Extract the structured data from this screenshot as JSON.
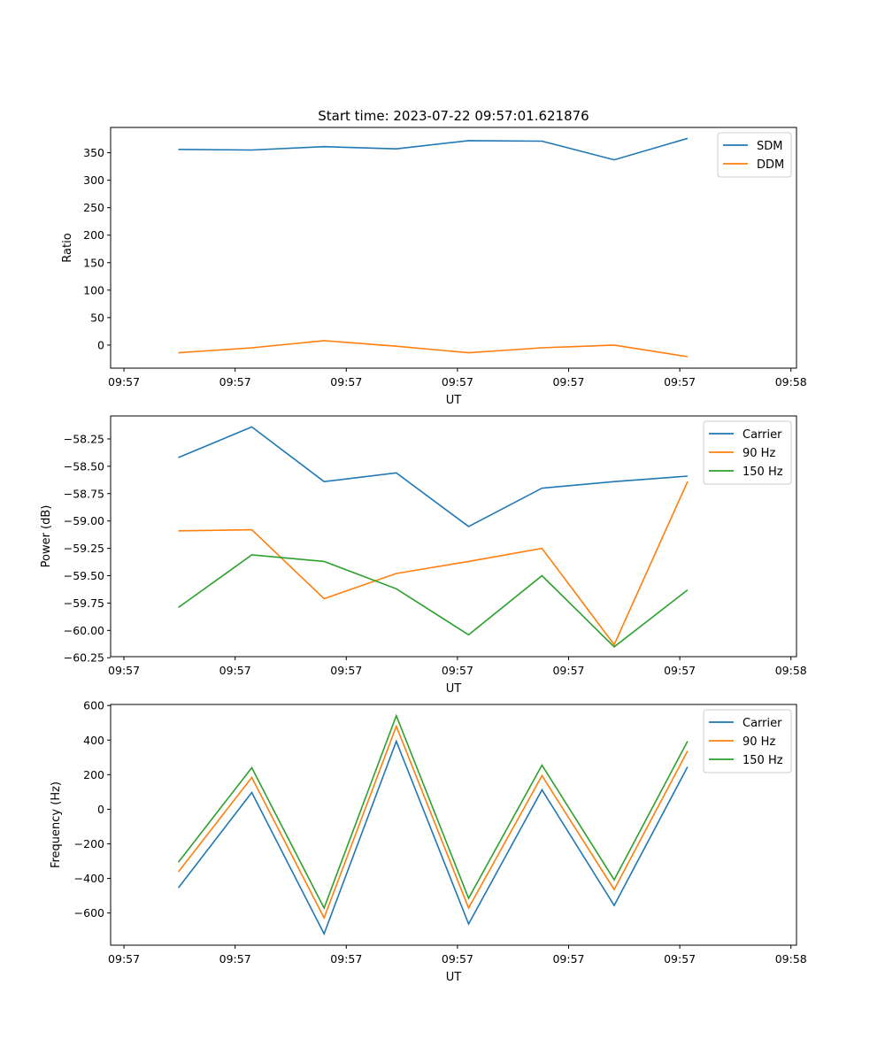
{
  "chart_data": [
    {
      "type": "line",
      "title": "Start time: 2023-07-22 09:57:01.621876",
      "xlabel": "UT",
      "ylabel": "Ratio",
      "x_seconds": [
        4.9,
        11.5,
        18.0,
        24.5,
        31.0,
        37.6,
        44.1,
        50.7
      ],
      "xlim": [
        -1.2,
        60.5
      ],
      "xticks": [
        0,
        10,
        20,
        30,
        40,
        50,
        60
      ],
      "xtick_labels": [
        "09:57",
        "09:57",
        "09:57",
        "09:57",
        "09:57",
        "09:57",
        "09:58"
      ],
      "ylim": [
        -42,
        396
      ],
      "yticks": [
        0,
        50,
        100,
        150,
        200,
        250,
        300,
        350
      ],
      "ytick_labels": [
        "0",
        "50",
        "100",
        "150",
        "200",
        "250",
        "300",
        "350"
      ],
      "legend": "top-right",
      "series": [
        {
          "name": "SDM",
          "color": "#1f77b4",
          "values": [
            356,
            355,
            361,
            357,
            372,
            371,
            337,
            376
          ]
        },
        {
          "name": "DDM",
          "color": "#ff7f0e",
          "values": [
            -14,
            -5,
            8,
            -2,
            -14,
            -5,
            0,
            -21
          ]
        }
      ]
    },
    {
      "type": "line",
      "title": "",
      "xlabel": "UT",
      "ylabel": "Power (dB)",
      "x_seconds": [
        4.9,
        11.5,
        18.0,
        24.5,
        31.0,
        37.6,
        44.1,
        50.7
      ],
      "xlim": [
        -1.2,
        60.5
      ],
      "xticks": [
        0,
        10,
        20,
        30,
        40,
        50,
        60
      ],
      "xtick_labels": [
        "09:57",
        "09:57",
        "09:57",
        "09:57",
        "09:57",
        "09:57",
        "09:58"
      ],
      "ylim": [
        -60.24,
        -58.04
      ],
      "yticks": [
        -58.25,
        -58.5,
        -58.75,
        -59.0,
        -59.25,
        -59.5,
        -59.75,
        -60.0,
        -60.25
      ],
      "ytick_labels": [
        "−58.25",
        "−58.50",
        "−58.75",
        "−59.00",
        "−59.25",
        "−59.50",
        "−59.75",
        "−60.00",
        "−60.25"
      ],
      "legend": "top-right",
      "series": [
        {
          "name": "Carrier",
          "color": "#1f77b4",
          "values": [
            -58.42,
            -58.14,
            -58.64,
            -58.56,
            -59.05,
            -58.7,
            -58.64,
            -58.59
          ]
        },
        {
          "name": "90 Hz",
          "color": "#ff7f0e",
          "values": [
            -59.09,
            -59.08,
            -59.71,
            -59.48,
            -59.37,
            -59.25,
            -60.13,
            -58.64
          ]
        },
        {
          "name": "150 Hz",
          "color": "#2ca02c",
          "values": [
            -59.79,
            -59.31,
            -59.37,
            -59.62,
            -60.04,
            -59.5,
            -60.15,
            -59.63
          ]
        }
      ]
    },
    {
      "type": "line",
      "title": "",
      "xlabel": "UT",
      "ylabel": "Frequency (Hz)",
      "x_seconds": [
        4.9,
        11.5,
        18.0,
        24.5,
        31.0,
        37.6,
        44.1,
        50.7
      ],
      "xlim": [
        -1.2,
        60.5
      ],
      "xticks": [
        0,
        10,
        20,
        30,
        40,
        50,
        60
      ],
      "xtick_labels": [
        "09:57",
        "09:57",
        "09:57",
        "09:57",
        "09:57",
        "09:57",
        "09:58"
      ],
      "ylim": [
        -786,
        606
      ],
      "yticks": [
        600,
        400,
        200,
        0,
        -200,
        -400,
        -600
      ],
      "ytick_labels": [
        "600",
        "400",
        "200",
        "0",
        "−200",
        "−400",
        "−600"
      ],
      "legend": "top-right",
      "series": [
        {
          "name": "Carrier",
          "color": "#1f77b4",
          "values": [
            -454,
            97,
            -720,
            393,
            -663,
            112,
            -556,
            245
          ]
        },
        {
          "name": "90 Hz",
          "color": "#ff7f0e",
          "values": [
            -362,
            184,
            -628,
            480,
            -571,
            194,
            -464,
            337
          ]
        },
        {
          "name": "150 Hz",
          "color": "#2ca02c",
          "values": [
            -306,
            240,
            -571,
            541,
            -515,
            255,
            -408,
            393
          ]
        }
      ]
    }
  ]
}
